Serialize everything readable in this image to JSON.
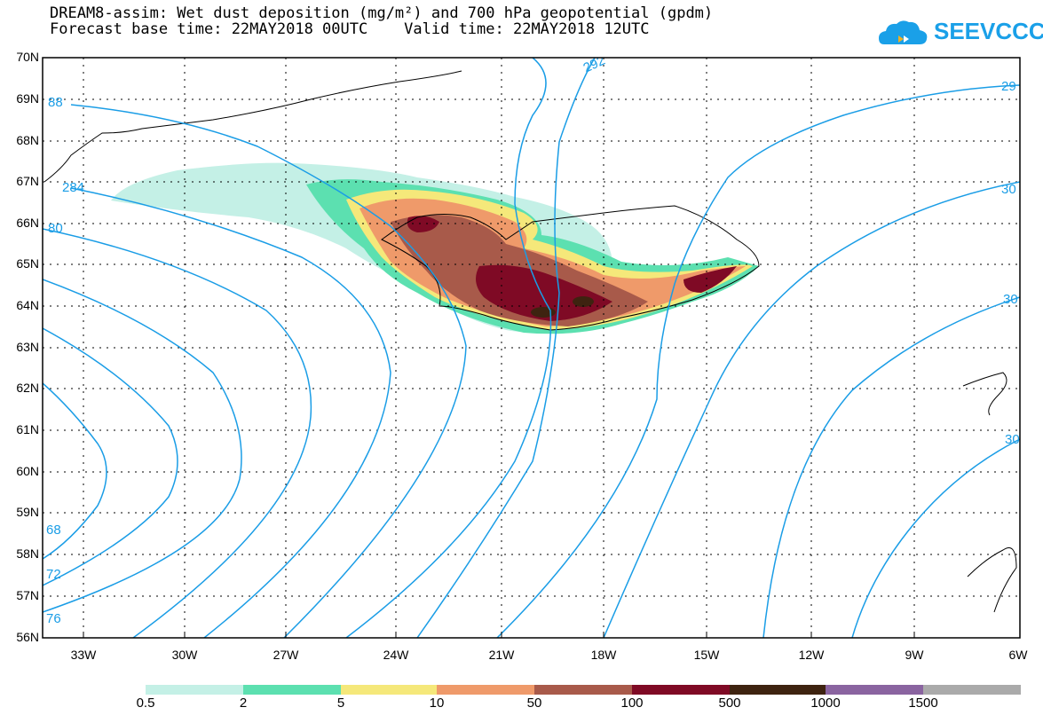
{
  "title": {
    "line1": "DREAM8-assim: Wet dust deposition (mg/m²) and 700 hPa geopotential (gpdm)",
    "line2": "Forecast base time: 22MAY2018 00UTC    Valid time: 22MAY2018 12UTC"
  },
  "logo": {
    "text": "SEEVCCC"
  },
  "axes": {
    "lat_labels": [
      "70N",
      "69N",
      "68N",
      "67N",
      "66N",
      "65N",
      "64N",
      "63N",
      "62N",
      "61N",
      "60N",
      "59N",
      "58N",
      "57N",
      "56N"
    ],
    "lon_labels": [
      "33W",
      "30W",
      "27W",
      "24W",
      "21W",
      "18W",
      "15W",
      "12W",
      "9W",
      "6W"
    ]
  },
  "contour_labels": [
    "88",
    "284",
    "80",
    "68",
    "72",
    "76",
    "292",
    "29",
    "30",
    "30",
    "30"
  ],
  "legend": {
    "labels": [
      "0.5",
      "2",
      "5",
      "10",
      "50",
      "100",
      "500",
      "1000",
      "1500"
    ],
    "colors": [
      "#c4f0e6",
      "#5ce0b0",
      "#f5e87a",
      "#ef9a6a",
      "#a85a4a",
      "#7f0a25",
      "#3e2310",
      "#8a64a0",
      "#aaaaaa"
    ]
  }
}
